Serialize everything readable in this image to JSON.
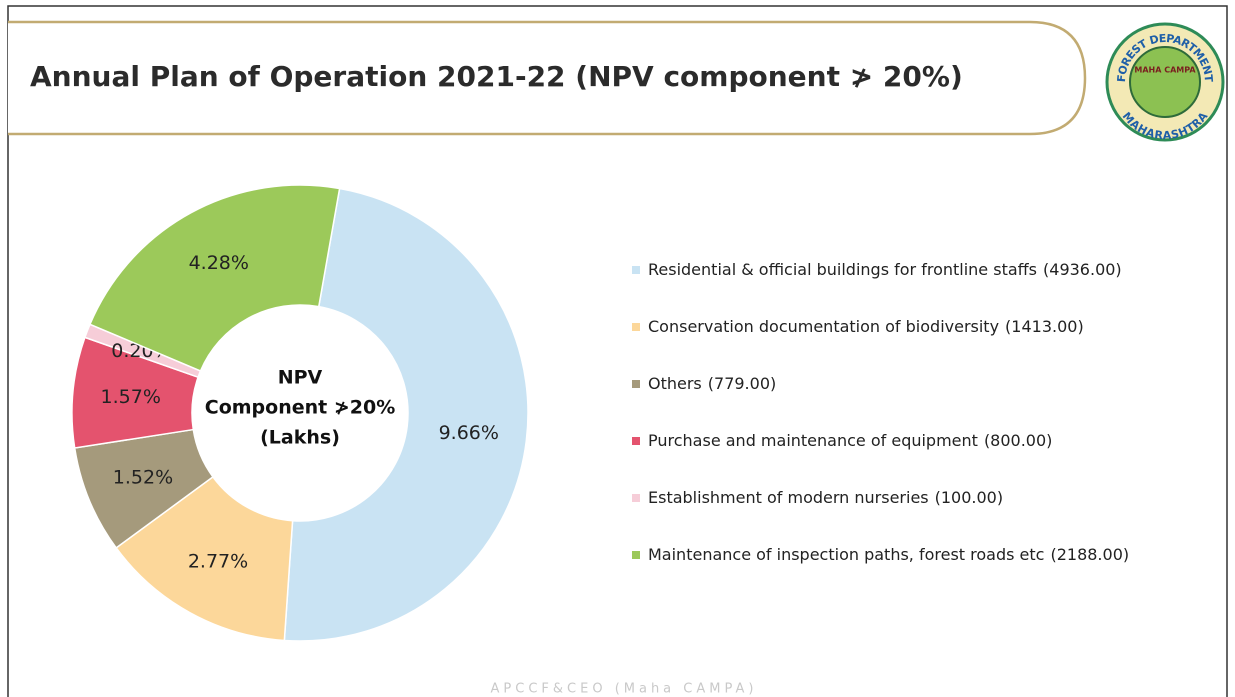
{
  "chart_data": {
    "type": "donut",
    "title": "Annual Plan of Operation 2021-22 (NPV component ≯ 20%)",
    "center_label": [
      "NPV",
      "Component ≯20%",
      "(Lakhs)"
    ],
    "categories": [
      "Residential & official buildings for frontline staffs",
      "Conservation documentation  of biodiversity",
      "Others",
      "Purchase and  maintenance  of  equipment",
      "Establishment of  modern  nurseries",
      "Maintenance  of inspection  paths, forest roads etc"
    ],
    "values": [
      4936,
      1413,
      779,
      800,
      100,
      2188
    ],
    "value_labels": [
      "(4936.00)",
      "(1413.00)",
      "(779.00)",
      "(800.00)",
      "(100.00)",
      "(2188.00)"
    ],
    "shares": [
      9.66,
      2.77,
      1.52,
      1.57,
      0.2,
      4.28
    ],
    "share_labels": [
      "9.66%",
      "2.77%",
      "1.52%",
      "1.57%",
      "0.20%",
      "4.28%"
    ],
    "colors": [
      "#c9e3f3",
      "#fcd79a",
      "#a59a7c",
      "#e4536e",
      "#f6cdd8",
      "#9cc95a"
    ]
  },
  "logo": {
    "top": "FOREST DEPARTMENT",
    "center": "MAHA CAMPA",
    "bottom": "MAHARASHTRA"
  },
  "footer": "APCCF&CEO (Maha CAMPA)"
}
